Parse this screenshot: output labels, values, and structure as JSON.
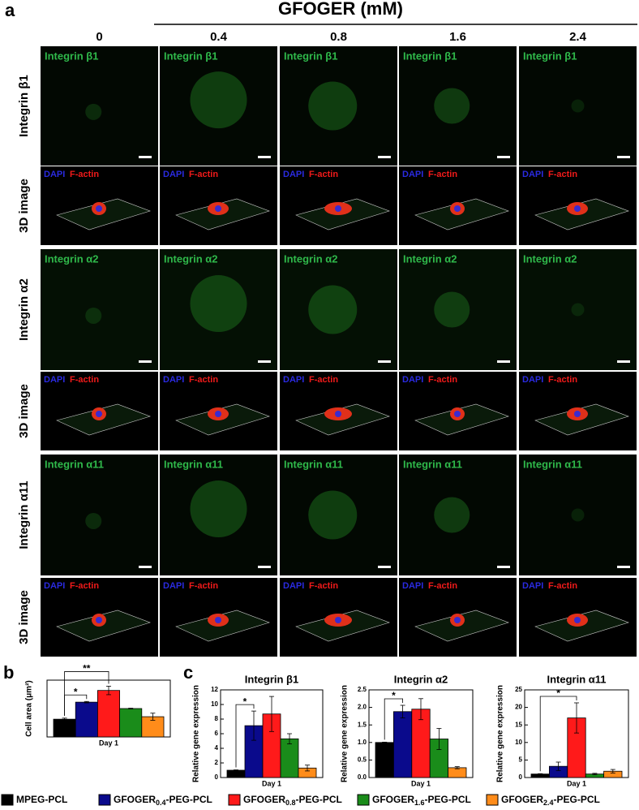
{
  "panel_a": {
    "label": "a",
    "title": "GFOGER (mM)",
    "columns": [
      "0",
      "0.4",
      "0.8",
      "1.6",
      "2.4"
    ],
    "rows": [
      {
        "label": "Integrin  β1",
        "marker": "Integrin  β1"
      },
      {
        "label": "Integrin  α2",
        "marker": "Integrin  α2"
      },
      {
        "label": "Integrin  α11",
        "marker": "Integrin  α11"
      }
    ],
    "image3d_label": "3D image",
    "dapi": "DAPI",
    "factin": "F-actin"
  },
  "panel_b_label": "b",
  "panel_c_label": "c",
  "chart_data": [
    {
      "type": "bar",
      "ylabel": "Cell area (μm²)",
      "x": [
        "Day 1"
      ],
      "ylim": [
        0,
        1600
      ],
      "annotations": [
        {
          "text": "*",
          "pair": [
            0,
            1
          ]
        },
        {
          "text": "**",
          "pair": [
            0,
            2
          ]
        }
      ],
      "series": [
        {
          "name": "MPEG-PCL",
          "color": "#000000",
          "values": [
            500
          ],
          "errors": [
            30
          ]
        },
        {
          "name": "GFOGER0.4-PEG-PCL",
          "color": "#0a0a8c",
          "values": [
            980
          ],
          "errors": [
            20
          ]
        },
        {
          "name": "GFOGER0.8-PEG-PCL",
          "color": "#ff1a1a",
          "values": [
            1310
          ],
          "errors": [
            120
          ]
        },
        {
          "name": "GFOGER1.6-PEG-PCL",
          "color": "#1a8c1a",
          "values": [
            800
          ],
          "errors": [
            10
          ]
        },
        {
          "name": "GFOGER2.4-PEG-PCL",
          "color": "#ff8c1a",
          "values": [
            570
          ],
          "errors": [
            100
          ]
        }
      ]
    },
    {
      "type": "bar",
      "title": "Integrin  β1",
      "ylabel": "Relative gene expression",
      "x": [
        "Day 1"
      ],
      "ylim": [
        0,
        12
      ],
      "yticks": [
        0,
        2,
        4,
        6,
        8,
        10,
        12
      ],
      "annotations": [
        {
          "text": "*",
          "pair": [
            0,
            1
          ]
        }
      ],
      "series": [
        {
          "name": "MPEG-PCL",
          "color": "#000000",
          "values": [
            1
          ],
          "errors": [
            0.05
          ]
        },
        {
          "name": "GFOGER0.4-PEG-PCL",
          "color": "#0a0a8c",
          "values": [
            7.1
          ],
          "errors": [
            2.0
          ]
        },
        {
          "name": "GFOGER0.8-PEG-PCL",
          "color": "#ff1a1a",
          "values": [
            8.7
          ],
          "errors": [
            2.4
          ]
        },
        {
          "name": "GFOGER1.6-PEG-PCL",
          "color": "#1a8c1a",
          "values": [
            5.3
          ],
          "errors": [
            0.7
          ]
        },
        {
          "name": "GFOGER2.4-PEG-PCL",
          "color": "#ff8c1a",
          "values": [
            1.3
          ],
          "errors": [
            0.4
          ]
        }
      ]
    },
    {
      "type": "bar",
      "title": "Integrin  α2",
      "ylabel": "Relative gene expression",
      "x": [
        "Day 1"
      ],
      "ylim": [
        0,
        2.5
      ],
      "yticks": [
        {
          "value": 0,
          "label": "0.0"
        },
        0.5,
        {
          "value": 1,
          "label": "1.0"
        },
        1.5,
        {
          "value": 2,
          "label": "2.0"
        },
        2.5
      ],
      "annotations": [
        {
          "text": "*",
          "pair": [
            0,
            1
          ]
        }
      ],
      "series": [
        {
          "name": "MPEG-PCL",
          "color": "#000000",
          "values": [
            1.0
          ],
          "errors": [
            0.01
          ]
        },
        {
          "name": "GFOGER0.4-PEG-PCL",
          "color": "#0a0a8c",
          "values": [
            1.88
          ],
          "errors": [
            0.18
          ]
        },
        {
          "name": "GFOGER0.8-PEG-PCL",
          "color": "#ff1a1a",
          "values": [
            1.95
          ],
          "errors": [
            0.3
          ]
        },
        {
          "name": "GFOGER1.6-PEG-PCL",
          "color": "#1a8c1a",
          "values": [
            1.1
          ],
          "errors": [
            0.3
          ]
        },
        {
          "name": "GFOGER2.4-PEG-PCL",
          "color": "#ff8c1a",
          "values": [
            0.28
          ],
          "errors": [
            0.03
          ]
        }
      ]
    },
    {
      "type": "bar",
      "title": "Integrin  α11",
      "ylabel": "Relative gene expression",
      "x": [
        "Day 1"
      ],
      "ylim": [
        0,
        25
      ],
      "yticks": [
        0,
        5,
        10,
        15,
        20,
        25
      ],
      "annotations": [
        {
          "text": "*",
          "pair": [
            0,
            2
          ]
        }
      ],
      "series": [
        {
          "name": "MPEG-PCL",
          "color": "#000000",
          "values": [
            1
          ],
          "errors": [
            0.1
          ]
        },
        {
          "name": "GFOGER0.4-PEG-PCL",
          "color": "#0a0a8c",
          "values": [
            3.2
          ],
          "errors": [
            1.2
          ]
        },
        {
          "name": "GFOGER0.8-PEG-PCL",
          "color": "#ff1a1a",
          "values": [
            17
          ],
          "errors": [
            4.3
          ]
        },
        {
          "name": "GFOGER1.6-PEG-PCL",
          "color": "#1a8c1a",
          "values": [
            1
          ],
          "errors": [
            0.2
          ]
        },
        {
          "name": "GFOGER2.4-PEG-PCL",
          "color": "#ff8c1a",
          "values": [
            1.8
          ],
          "errors": [
            0.5
          ]
        }
      ]
    }
  ]
}
